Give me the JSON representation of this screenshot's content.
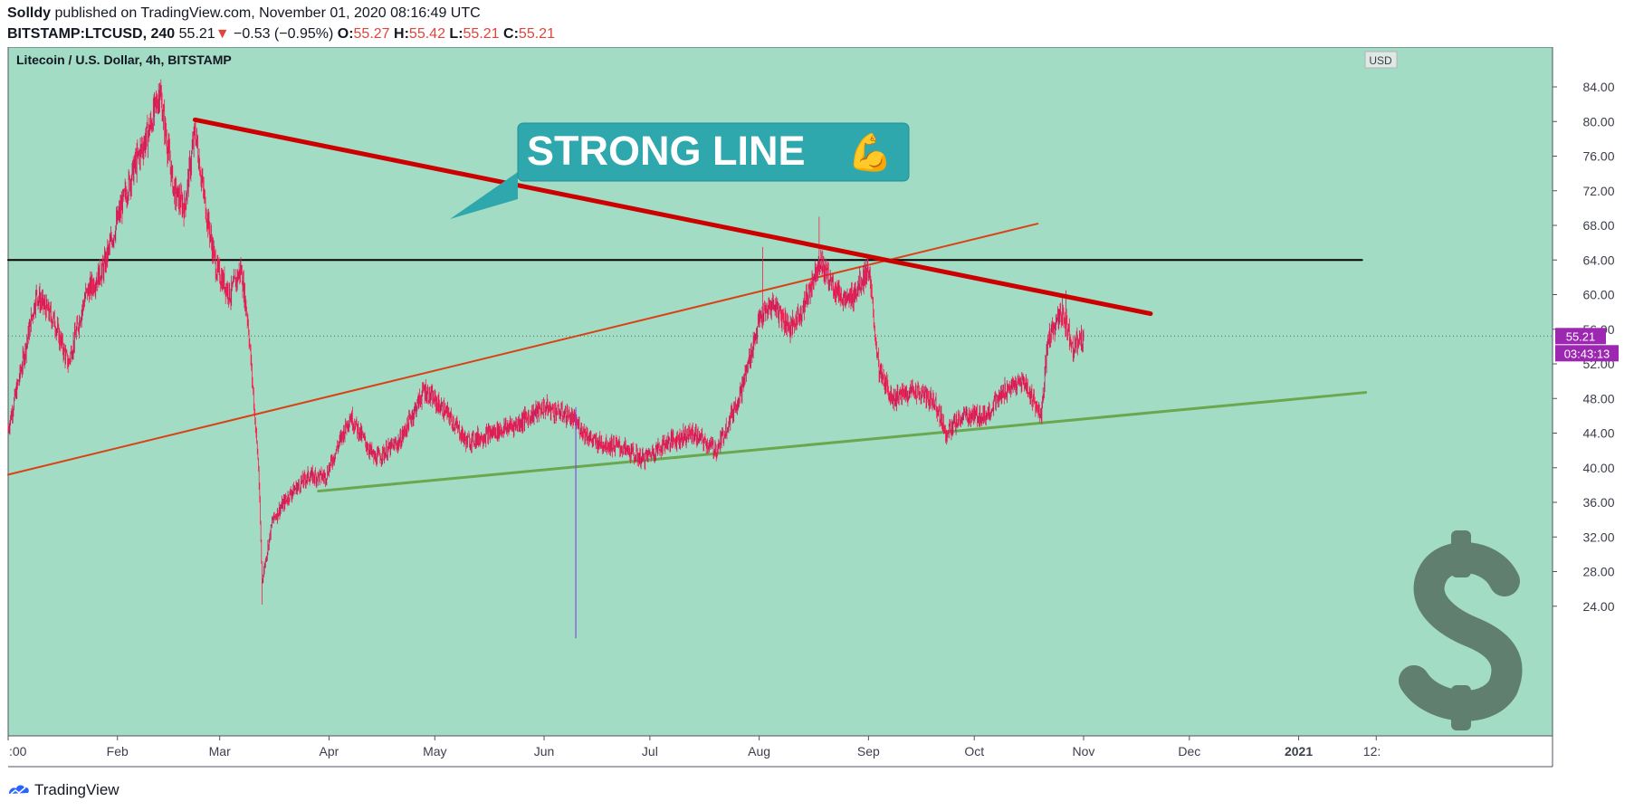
{
  "header": {
    "author": "Solldy",
    "published": "published on TradingView.com, November 01, 2020 08:16:49 UTC",
    "symbol": "BITSTAMP:LTCUSD, 240",
    "last": "55.21",
    "change_arrow": "▼",
    "change": "−0.53 (−0.95%)",
    "o_label": "O:",
    "o_value": "55.27",
    "h_label": "H:",
    "h_value": "55.42",
    "l_label": "L:",
    "l_value": "55.21",
    "c_label": "C:",
    "c_value": "55.21"
  },
  "chart_title": "Litecoin / U.S. Dollar, 4h, BITSTAMP",
  "currency_label": "USD",
  "price_badge": "55.21",
  "countdown_badge": "03:43:13",
  "annotation": {
    "text": "STRONG LINE",
    "emoji": "💪"
  },
  "footer": {
    "brand": "TradingView"
  },
  "colors": {
    "background": "#a3dcc4",
    "candle_up": "#c2185b",
    "candle_down": "#ff1a4a",
    "red_trend": "#cc0000",
    "orange_trend": "#d84315",
    "green_trend": "#6aa84f",
    "horizontal": "#000000",
    "callout": "#2fa8ad",
    "badge": "#9c27b0",
    "dollar": "#607f6f"
  },
  "chart_data": {
    "type": "candlestick",
    "title": "Litecoin / U.S. Dollar, 4h, BITSTAMP",
    "ylim": [
      20,
      87
    ],
    "y_ticks": [
      "84.00",
      "80.00",
      "76.00",
      "72.00",
      "68.00",
      "64.00",
      "60.00",
      "56.00",
      "52.00",
      "48.00",
      "44.00",
      "40.00",
      "36.00",
      "32.00",
      "28.00",
      "24.00"
    ],
    "x_ticks": [
      {
        "label": ":00",
        "date": "2020-01-01"
      },
      {
        "label": "Feb",
        "date": "2020-02-01"
      },
      {
        "label": "Mar",
        "date": "2020-03-01"
      },
      {
        "label": "Apr",
        "date": "2020-04-01"
      },
      {
        "label": "May",
        "date": "2020-05-01"
      },
      {
        "label": "Jun",
        "date": "2020-06-01"
      },
      {
        "label": "Jul",
        "date": "2020-07-01"
      },
      {
        "label": "Aug",
        "date": "2020-08-01"
      },
      {
        "label": "Sep",
        "date": "2020-09-01"
      },
      {
        "label": "Oct",
        "date": "2020-10-01"
      },
      {
        "label": "Nov",
        "date": "2020-11-01"
      },
      {
        "label": "Dec",
        "date": "2020-12-01"
      },
      {
        "label": "2021",
        "date": "2021-01-01"
      },
      {
        "label": "12:",
        "date": "2021-01-23"
      }
    ],
    "price_path": [
      [
        "2020-01-01",
        44.5
      ],
      [
        "2020-01-05",
        52
      ],
      [
        "2020-01-09",
        60
      ],
      [
        "2020-01-14",
        57
      ],
      [
        "2020-01-18",
        52
      ],
      [
        "2020-01-23",
        60
      ],
      [
        "2020-01-28",
        63
      ],
      [
        "2020-02-02",
        70
      ],
      [
        "2020-02-06",
        75
      ],
      [
        "2020-02-10",
        79
      ],
      [
        "2020-02-13",
        83.5
      ],
      [
        "2020-02-17",
        72
      ],
      [
        "2020-02-20",
        70
      ],
      [
        "2020-02-23",
        79
      ],
      [
        "2020-02-26",
        70
      ],
      [
        "2020-02-29",
        63
      ],
      [
        "2020-03-04",
        60
      ],
      [
        "2020-03-07",
        63
      ],
      [
        "2020-03-09",
        57
      ],
      [
        "2020-03-12",
        40
      ],
      [
        "2020-03-13",
        27
      ],
      [
        "2020-03-16",
        34
      ],
      [
        "2020-03-21",
        37
      ],
      [
        "2020-03-26",
        39
      ],
      [
        "2020-03-31",
        39
      ],
      [
        "2020-04-07",
        46
      ],
      [
        "2020-04-14",
        41
      ],
      [
        "2020-04-21",
        43
      ],
      [
        "2020-04-28",
        49
      ],
      [
        "2020-05-05",
        46
      ],
      [
        "2020-05-10",
        43
      ],
      [
        "2020-05-17",
        44
      ],
      [
        "2020-05-24",
        45
      ],
      [
        "2020-06-01",
        47
      ],
      [
        "2020-06-08",
        46
      ],
      [
        "2020-06-15",
        43
      ],
      [
        "2020-06-22",
        42.5
      ],
      [
        "2020-06-29",
        41
      ],
      [
        "2020-07-06",
        43
      ],
      [
        "2020-07-13",
        44
      ],
      [
        "2020-07-20",
        42
      ],
      [
        "2020-07-27",
        49
      ],
      [
        "2020-08-01",
        57
      ],
      [
        "2020-08-05",
        59
      ],
      [
        "2020-08-10",
        56
      ],
      [
        "2020-08-14",
        59
      ],
      [
        "2020-08-18",
        64
      ],
      [
        "2020-08-22",
        61
      ],
      [
        "2020-08-26",
        59
      ],
      [
        "2020-09-01",
        63
      ],
      [
        "2020-09-04",
        51
      ],
      [
        "2020-09-08",
        48
      ],
      [
        "2020-09-14",
        49
      ],
      [
        "2020-09-20",
        47.5
      ],
      [
        "2020-09-23",
        44
      ],
      [
        "2020-09-28",
        46
      ],
      [
        "2020-10-04",
        46
      ],
      [
        "2020-10-10",
        49
      ],
      [
        "2020-10-15",
        50
      ],
      [
        "2020-10-20",
        46
      ],
      [
        "2020-10-22",
        55
      ],
      [
        "2020-10-26",
        58
      ],
      [
        "2020-10-29",
        54
      ],
      [
        "2020-11-01",
        55.21
      ]
    ],
    "spikes": [
      {
        "date": "2020-02-13",
        "high": 84.5
      },
      {
        "date": "2020-03-13",
        "low": 24.2
      },
      {
        "date": "2020-06-10",
        "low": 20.3
      },
      {
        "date": "2020-08-02",
        "high": 65.5
      },
      {
        "date": "2020-08-18",
        "high": 69
      },
      {
        "date": "2020-10-27",
        "high": 60.5
      }
    ],
    "lines": [
      {
        "name": "red_resistance",
        "from": [
          "2020-02-23",
          80.2
        ],
        "to": [
          "2020-11-20",
          57.8
        ]
      },
      {
        "name": "orange_trend",
        "from": [
          "2020-01-01",
          39.2
        ],
        "to": [
          "2020-10-19",
          68.2
        ]
      },
      {
        "name": "green_support",
        "from": [
          "2020-03-29",
          37.3
        ],
        "to": [
          "2021-01-20",
          48.7
        ]
      },
      {
        "name": "horizontal_level",
        "from": [
          "2020-01-01",
          64
        ],
        "to": [
          "2021-01-19",
          64
        ]
      }
    ],
    "last_price": 55.21
  }
}
